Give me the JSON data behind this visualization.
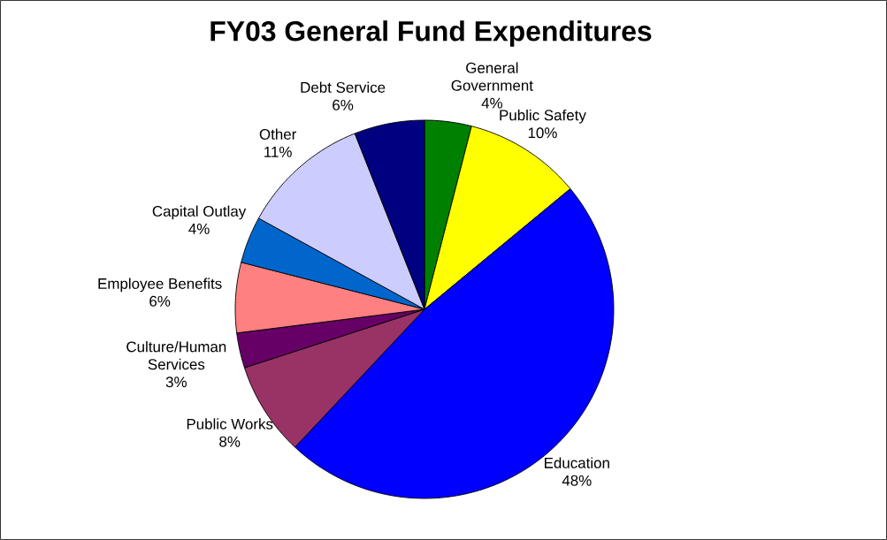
{
  "chart_data": {
    "type": "pie",
    "title": "FY03 General Fund Expenditures",
    "categories": [
      "General Government",
      "Public Safety",
      "Education",
      "Public Works",
      "Culture/Human Services",
      "Employee Benefits",
      "Capital Outlay",
      "Other",
      "Debt Service"
    ],
    "values": [
      4,
      10,
      48,
      8,
      3,
      6,
      4,
      11,
      6
    ],
    "colors": [
      "#008000",
      "#ffff00",
      "#0000ff",
      "#993366",
      "#660066",
      "#ff8080",
      "#0066cc",
      "#ccccff",
      "#000080"
    ],
    "value_labels": [
      "4%",
      "10%",
      "48%",
      "8%",
      "3%",
      "6%",
      "4%",
      "11%",
      "6%"
    ]
  }
}
